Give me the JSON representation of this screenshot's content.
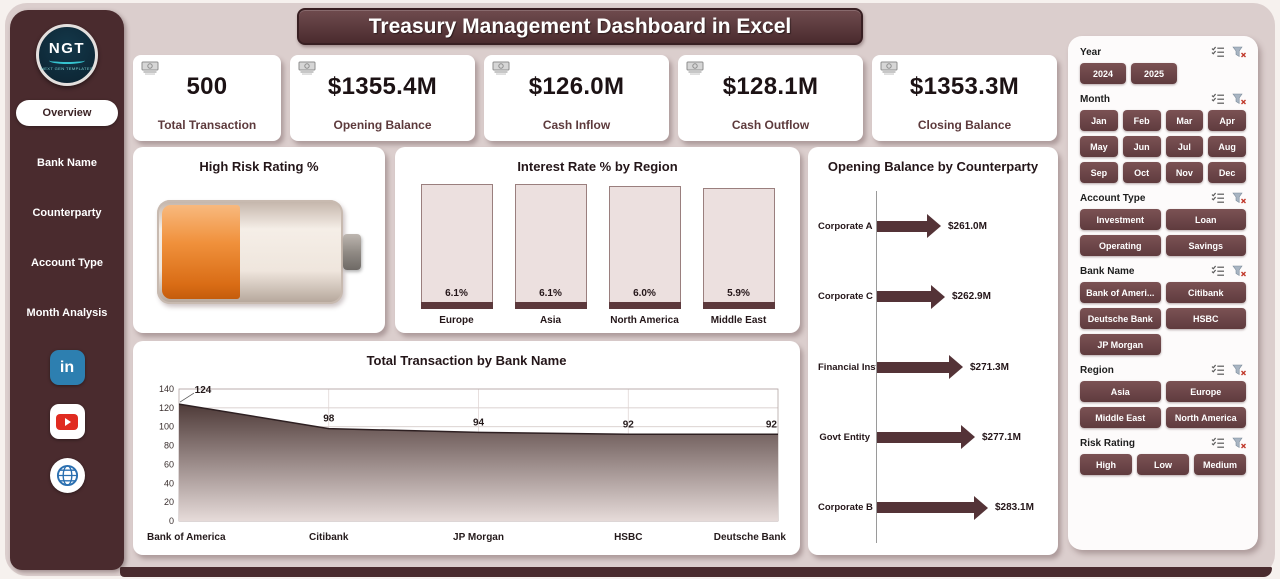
{
  "app": {
    "title": "Treasury Management Dashboard in Excel"
  },
  "logo": {
    "abbr": "NGT",
    "tagline": "NEXT GEN TEMPLATES"
  },
  "sidebar": {
    "items": [
      {
        "label": "Overview",
        "active": true
      },
      {
        "label": "Bank Name",
        "active": false
      },
      {
        "label": "Counterparty",
        "active": false
      },
      {
        "label": "Account Type",
        "active": false
      },
      {
        "label": "Month Analysis",
        "active": false
      }
    ],
    "social": [
      {
        "name": "linkedin"
      },
      {
        "name": "youtube"
      },
      {
        "name": "website"
      }
    ]
  },
  "kpis": [
    {
      "icon": "banknotes-icon",
      "value": "500",
      "label": "Total Transaction"
    },
    {
      "icon": "money-bag-icon",
      "value": "$1355.4M",
      "label": "Opening Balance"
    },
    {
      "icon": "cash-inflow-icon",
      "value": "$126.0M",
      "label": "Cash Inflow"
    },
    {
      "icon": "cash-outflow-icon",
      "value": "$128.1M",
      "label": "Cash Outflow"
    },
    {
      "icon": "closing-balance-icon",
      "value": "$1353.3M",
      "label": "Closing Balance"
    }
  ],
  "chart_data": [
    {
      "type": "bar",
      "variant": "battery-gauge",
      "title": "High Risk Rating %",
      "fill_percent_estimate": 42,
      "fill_color": "#ee8531"
    },
    {
      "type": "bar",
      "title": "Interest Rate % by Region",
      "categories": [
        "Europe",
        "Asia",
        "North America",
        "Middle East"
      ],
      "values": [
        6.1,
        6.1,
        6.0,
        5.9
      ],
      "value_labels": [
        "6.1%",
        "6.1%",
        "6.0%",
        "5.9%"
      ],
      "ylim": [
        0,
        6.2
      ]
    },
    {
      "type": "area",
      "title": "Total Transaction by Bank Name",
      "categories": [
        "Bank of America",
        "Citibank",
        "JP Morgan",
        "HSBC",
        "Deutsche Bank"
      ],
      "values": [
        124,
        98,
        94,
        92,
        92
      ],
      "ylim": [
        0,
        140
      ],
      "yticks": [
        0,
        20,
        40,
        60,
        80,
        100,
        120,
        140
      ],
      "grid": true
    },
    {
      "type": "bar",
      "variant": "horizontal-arrows",
      "title": "Opening Balance by Counterparty",
      "categories": [
        "Corporate A",
        "Corporate C",
        "Financial Inst",
        "Govt Entity",
        "Corporate B"
      ],
      "values": [
        261.0,
        262.9,
        271.3,
        277.1,
        283.1
      ],
      "value_labels": [
        "$261.0M",
        "$262.9M",
        "$271.3M",
        "$277.1M",
        "$283.1M"
      ]
    }
  ],
  "filters": [
    {
      "label": "Year",
      "columns": 2,
      "options": [
        "2024",
        "2025"
      ]
    },
    {
      "label": "Month",
      "columns": 4,
      "options": [
        "Jan",
        "Feb",
        "Mar",
        "Apr",
        "May",
        "Jun",
        "Jul",
        "Aug",
        "Sep",
        "Oct",
        "Nov",
        "Dec"
      ]
    },
    {
      "label": "Account Type",
      "columns": 2,
      "options": [
        "Investment",
        "Loan",
        "Operating",
        "Savings"
      ]
    },
    {
      "label": "Bank Name",
      "columns": 2,
      "options": [
        "Bank of Ameri...",
        "Citibank",
        "Deutsche Bank",
        "HSBC",
        "JP Morgan"
      ]
    },
    {
      "label": "Region",
      "columns": 2,
      "options": [
        "Asia",
        "Europe",
        "Middle East",
        "North America"
      ]
    },
    {
      "label": "Risk Rating",
      "columns": 3,
      "options": [
        "High",
        "Low",
        "Medium"
      ]
    }
  ],
  "colors": {
    "maroon_dark": "#4a2b2e",
    "maroon_button": "#6b4346",
    "panel_pink": "#dbcecd",
    "battery_orange": "#ee8531",
    "card_white": "#ffffff"
  }
}
